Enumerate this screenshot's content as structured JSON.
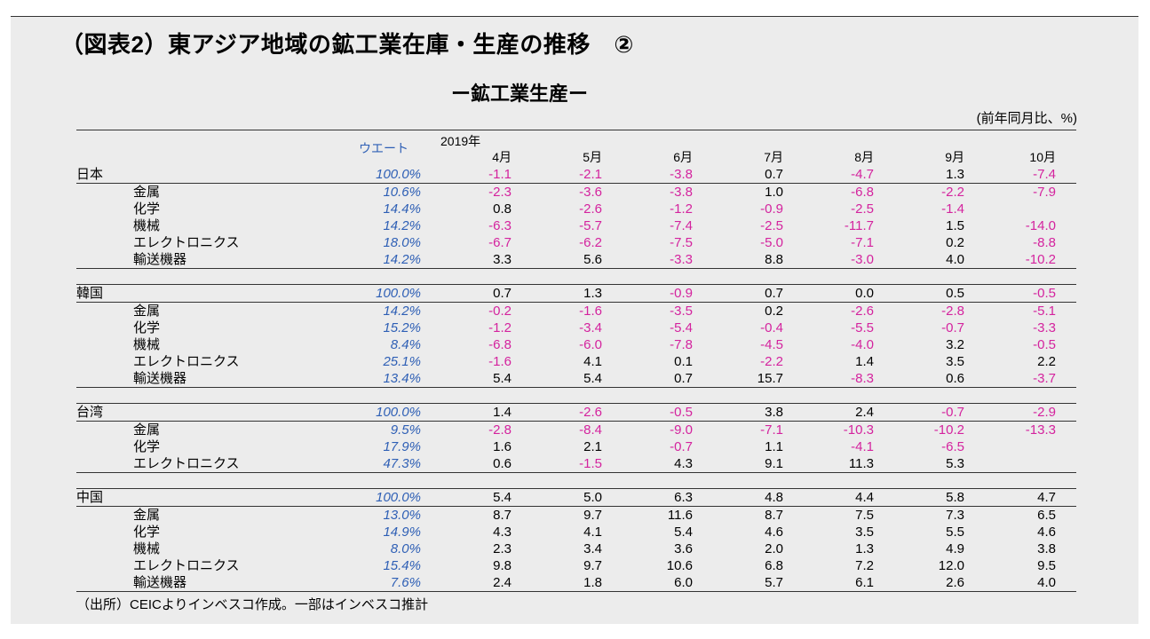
{
  "title": "（図表2）東アジア地域の鉱工業在庫・生産の推移　②",
  "subtitle": "ー鉱工業生産ー",
  "unit": "(前年同月比、%)",
  "header": {
    "weight": "ウエート",
    "year": "2019年",
    "months": [
      "4月",
      "5月",
      "6月",
      "7月",
      "8月",
      "9月",
      "10月"
    ]
  },
  "colors": {
    "negative": "#d4239e",
    "weight": "#2e5fb5"
  },
  "blocks": [
    {
      "country": {
        "label": "日本",
        "weight": "100.0%",
        "values": [
          "-1.1",
          "-2.1",
          "-3.8",
          "0.7",
          "-4.7",
          "1.3",
          "-7.4"
        ]
      },
      "rows": [
        {
          "label": "金属",
          "weight": "10.6%",
          "values": [
            "-2.3",
            "-3.6",
            "-3.8",
            "1.0",
            "-6.8",
            "-2.2",
            "-7.9"
          ]
        },
        {
          "label": "化学",
          "weight": "14.4%",
          "values": [
            "0.8",
            "-2.6",
            "-1.2",
            "-0.9",
            "-2.5",
            "-1.4",
            ""
          ]
        },
        {
          "label": "機械",
          "weight": "14.2%",
          "values": [
            "-6.3",
            "-5.7",
            "-7.4",
            "-2.5",
            "-11.7",
            "1.5",
            "-14.0"
          ]
        },
        {
          "label": "エレクトロニクス",
          "weight": "18.0%",
          "values": [
            "-6.7",
            "-6.2",
            "-7.5",
            "-5.0",
            "-7.1",
            "0.2",
            "-8.8"
          ]
        },
        {
          "label": "輸送機器",
          "weight": "14.2%",
          "values": [
            "3.3",
            "5.6",
            "-3.3",
            "8.8",
            "-3.0",
            "4.0",
            "-10.2"
          ]
        }
      ]
    },
    {
      "country": {
        "label": "韓国",
        "weight": "100.0%",
        "values": [
          "0.7",
          "1.3",
          "-0.9",
          "0.7",
          "0.0",
          "0.5",
          "-0.5"
        ]
      },
      "rows": [
        {
          "label": "金属",
          "weight": "14.2%",
          "values": [
            "-0.2",
            "-1.6",
            "-3.5",
            "0.2",
            "-2.6",
            "-2.8",
            "-5.1"
          ]
        },
        {
          "label": "化学",
          "weight": "15.2%",
          "values": [
            "-1.2",
            "-3.4",
            "-5.4",
            "-0.4",
            "-5.5",
            "-0.7",
            "-3.3"
          ]
        },
        {
          "label": "機械",
          "weight": "8.4%",
          "values": [
            "-6.8",
            "-6.0",
            "-7.8",
            "-4.5",
            "-4.0",
            "3.2",
            "-0.5"
          ]
        },
        {
          "label": "エレクトロニクス",
          "weight": "25.1%",
          "values": [
            "-1.6",
            "4.1",
            "0.1",
            "-2.2",
            "1.4",
            "3.5",
            "2.2"
          ]
        },
        {
          "label": "輸送機器",
          "weight": "13.4%",
          "values": [
            "5.4",
            "5.4",
            "0.7",
            "15.7",
            "-8.3",
            "0.6",
            "-3.7"
          ]
        }
      ]
    },
    {
      "country": {
        "label": "台湾",
        "weight": "100.0%",
        "values": [
          "1.4",
          "-2.6",
          "-0.5",
          "3.8",
          "2.4",
          "-0.7",
          "-2.9"
        ]
      },
      "rows": [
        {
          "label": "金属",
          "weight": "9.5%",
          "values": [
            "-2.8",
            "-8.4",
            "-9.0",
            "-7.1",
            "-10.3",
            "-10.2",
            "-13.3"
          ]
        },
        {
          "label": "化学",
          "weight": "17.9%",
          "values": [
            "1.6",
            "2.1",
            "-0.7",
            "1.1",
            "-4.1",
            "-6.5",
            ""
          ]
        },
        {
          "label": "エレクトロニクス",
          "weight": "47.3%",
          "values": [
            "0.6",
            "-1.5",
            "4.3",
            "9.1",
            "11.3",
            "5.3",
            ""
          ]
        }
      ]
    },
    {
      "country": {
        "label": "中国",
        "weight": "100.0%",
        "values": [
          "5.4",
          "5.0",
          "6.3",
          "4.8",
          "4.4",
          "5.8",
          "4.7"
        ]
      },
      "rows": [
        {
          "label": "金属",
          "weight": "13.0%",
          "values": [
            "8.7",
            "9.7",
            "11.6",
            "8.7",
            "7.5",
            "7.3",
            "6.5"
          ]
        },
        {
          "label": "化学",
          "weight": "14.9%",
          "values": [
            "4.3",
            "4.1",
            "5.4",
            "4.6",
            "3.5",
            "5.5",
            "4.6"
          ]
        },
        {
          "label": "機械",
          "weight": "8.0%",
          "values": [
            "2.3",
            "3.4",
            "3.6",
            "2.0",
            "1.3",
            "4.9",
            "3.8"
          ]
        },
        {
          "label": "エレクトロニクス",
          "weight": "15.4%",
          "values": [
            "9.8",
            "9.7",
            "10.6",
            "6.8",
            "7.2",
            "12.0",
            "9.5"
          ]
        },
        {
          "label": "輸送機器",
          "weight": "7.6%",
          "values": [
            "2.4",
            "1.8",
            "6.0",
            "5.7",
            "6.1",
            "2.6",
            "4.0"
          ]
        }
      ]
    }
  ],
  "source": "（出所）CEICよりインベスコ作成。一部はインベスコ推計"
}
